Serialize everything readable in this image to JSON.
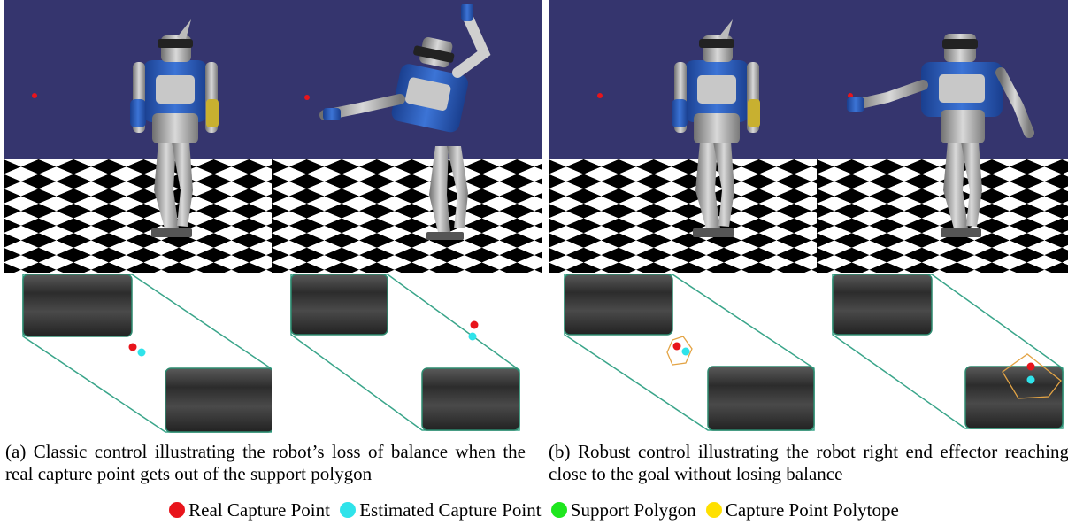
{
  "colors": {
    "sky": "#35356e",
    "real_capture_point": "#e8141b",
    "estimated_capture_point": "#2fe3ea",
    "support_polygon": "#1ee61e",
    "capture_point_polytope": "#ffe000",
    "polygon_edge": "#3aa58a",
    "polytope_edge": "#e3a445"
  },
  "captions": {
    "a": "(a) Classic control illustrating the robot’s loss of balance when the real capture point gets out of the support polygon",
    "b": "(b) Robust control illustrating the robot right end effector reaching close to the goal without losing balance"
  },
  "legend": [
    {
      "label": "Real Capture Point",
      "color": "#e8141b"
    },
    {
      "label": "Estimated Capture Point",
      "color": "#2fe3ea"
    },
    {
      "label": "Support Polygon",
      "color": "#1ee61e"
    },
    {
      "label": "Capture Point Polytope",
      "color": "#ffe000"
    }
  ],
  "icons": [
    "robot-standing",
    "robot-tilting",
    "robot-reaching"
  ]
}
